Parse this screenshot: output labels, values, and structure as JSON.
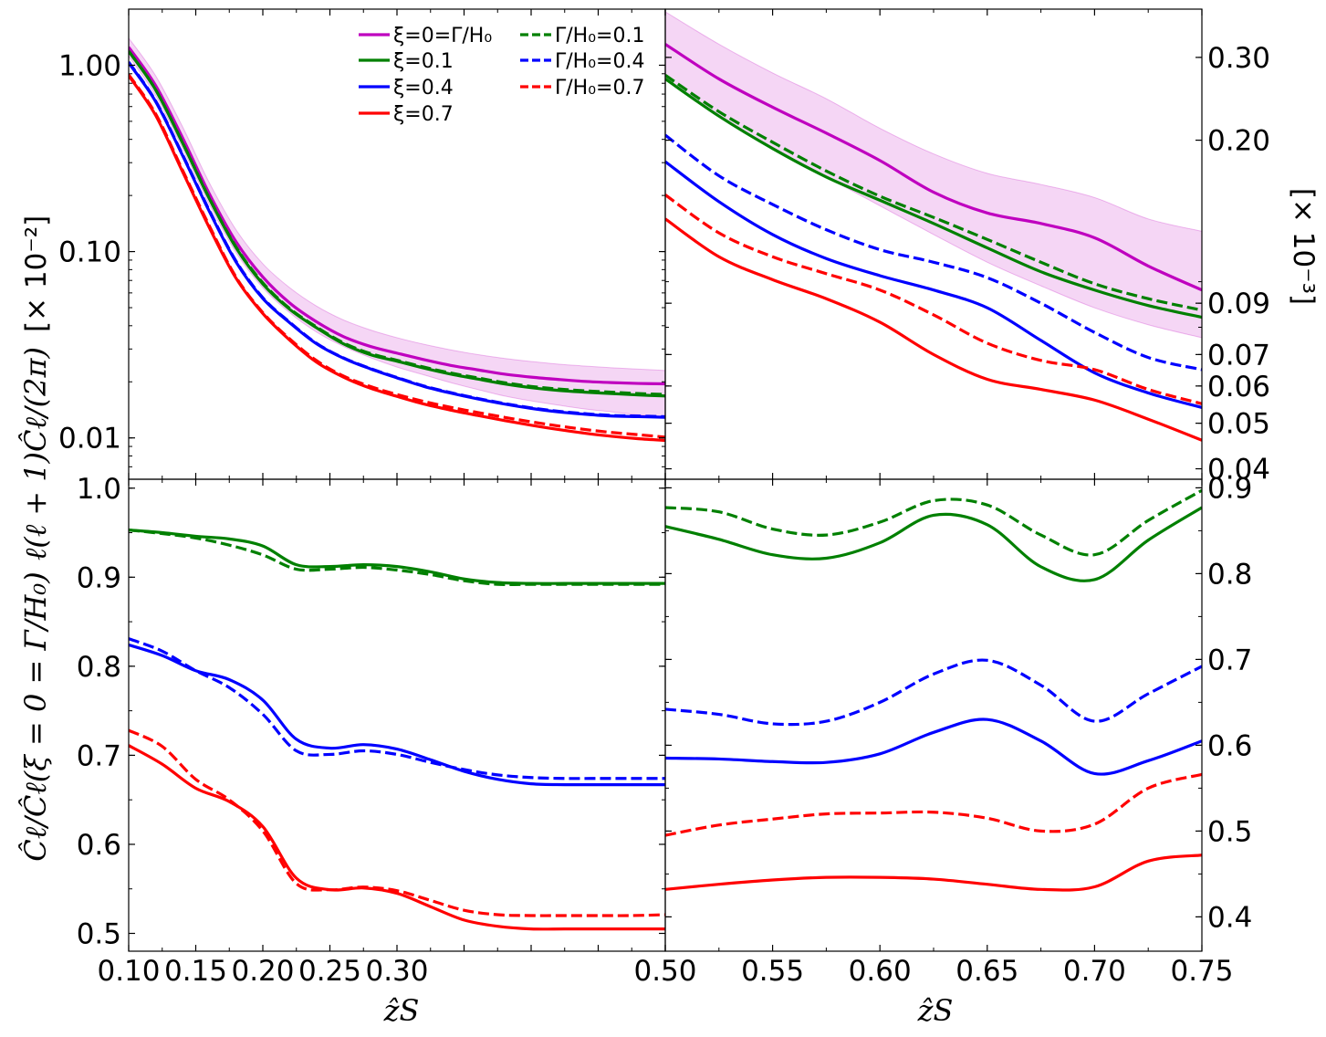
{
  "chart_data": [
    {
      "panel": "top-left",
      "type": "line",
      "yscale": "log",
      "xlim": [
        0.1,
        0.5
      ],
      "ylim": [
        0.006,
        2.0
      ],
      "yticks": [
        0.01,
        0.1,
        1.0
      ],
      "ytick_labels": [
        "0.01",
        "0.10",
        "1.00"
      ],
      "ylabel": "ℓ(ℓ + 1)Ĉℓ/(2π)",
      "yunit": "[× 10⁻²]",
      "legend": {
        "placement": "top",
        "entries": [
          {
            "label": "ξ=0=Γ/H₀",
            "color": "#bf00bf",
            "style": "solid"
          },
          {
            "label": "ξ=0.1",
            "color": "#008000",
            "style": "solid"
          },
          {
            "label": "ξ=0.4",
            "color": "#0000ff",
            "style": "solid"
          },
          {
            "label": "ξ=0.7",
            "color": "#ff0000",
            "style": "solid"
          },
          {
            "label": "Γ/H₀=0.1",
            "color": "#008000",
            "style": "dashed"
          },
          {
            "label": "Γ/H₀=0.4",
            "color": "#0000ff",
            "style": "dashed"
          },
          {
            "label": "Γ/H₀=0.7",
            "color": "#ff0000",
            "style": "dashed"
          }
        ]
      },
      "x": [
        0.1,
        0.12,
        0.14,
        0.16,
        0.18,
        0.2,
        0.22,
        0.24,
        0.26,
        0.28,
        0.3,
        0.32,
        0.34,
        0.36,
        0.38,
        0.4,
        0.42,
        0.44,
        0.46,
        0.48,
        0.5
      ],
      "band": {
        "name": "ξ=0=Γ/H₀ band",
        "color": "#bf00bf",
        "lower": [
          1.12,
          0.69,
          0.36,
          0.18,
          0.099,
          0.064,
          0.047,
          0.037,
          0.031,
          0.027,
          0.024,
          0.0218,
          0.0198,
          0.0182,
          0.0168,
          0.0158,
          0.015,
          0.0143,
          0.0138,
          0.0133,
          0.013
        ],
        "upper": [
          1.4,
          0.88,
          0.47,
          0.235,
          0.131,
          0.086,
          0.064,
          0.051,
          0.043,
          0.038,
          0.0345,
          0.0318,
          0.0297,
          0.028,
          0.0267,
          0.0257,
          0.0249,
          0.0243,
          0.0238,
          0.0234,
          0.023
        ]
      },
      "series": [
        {
          "name": "ξ=0=Γ/H₀",
          "color": "#bf00bf",
          "style": "solid",
          "values": [
            1.25,
            0.78,
            0.41,
            0.205,
            0.113,
            0.073,
            0.053,
            0.042,
            0.035,
            0.031,
            0.0285,
            0.0263,
            0.0245,
            0.0232,
            0.022,
            0.0212,
            0.0206,
            0.0201,
            0.0198,
            0.0196,
            0.0195
          ]
        },
        {
          "name": "ξ=0.1",
          "color": "#008000",
          "style": "solid",
          "values": [
            1.19,
            0.74,
            0.385,
            0.193,
            0.105,
            0.067,
            0.049,
            0.039,
            0.032,
            0.028,
            0.0258,
            0.0237,
            0.022,
            0.0207,
            0.0195,
            0.0186,
            0.018,
            0.0176,
            0.0173,
            0.017,
            0.0168
          ]
        },
        {
          "name": "ξ=0.4",
          "color": "#0000ff",
          "style": "solid",
          "values": [
            1.03,
            0.64,
            0.33,
            0.165,
            0.088,
            0.056,
            0.0415,
            0.032,
            0.0268,
            0.0235,
            0.021,
            0.0189,
            0.0174,
            0.0162,
            0.0152,
            0.0144,
            0.0138,
            0.0134,
            0.0131,
            0.013,
            0.0129
          ]
        },
        {
          "name": "ξ=0.7",
          "color": "#ff0000",
          "style": "solid",
          "values": [
            0.88,
            0.54,
            0.27,
            0.135,
            0.072,
            0.0465,
            0.0335,
            0.0255,
            0.0212,
            0.0185,
            0.0167,
            0.0152,
            0.0141,
            0.0132,
            0.0124,
            0.0117,
            0.0111,
            0.0106,
            0.0102,
            0.0099,
            0.0097
          ]
        },
        {
          "name": "Γ/H₀=0.1",
          "color": "#008000",
          "style": "dashed",
          "values": [
            1.19,
            0.74,
            0.386,
            0.194,
            0.106,
            0.068,
            0.0495,
            0.0394,
            0.0324,
            0.0284,
            0.0261,
            0.024,
            0.0223,
            0.021,
            0.0198,
            0.0189,
            0.0183,
            0.0179,
            0.0176,
            0.0173,
            0.0171
          ]
        },
        {
          "name": "Γ/H₀=0.4",
          "color": "#0000ff",
          "style": "dashed",
          "values": [
            1.04,
            0.645,
            0.333,
            0.167,
            0.089,
            0.0565,
            0.0418,
            0.0322,
            0.0269,
            0.0236,
            0.0211,
            0.019,
            0.0175,
            0.0163,
            0.0153,
            0.0145,
            0.0139,
            0.0135,
            0.0132,
            0.0131,
            0.013
          ]
        },
        {
          "name": "Γ/H₀=0.7",
          "color": "#ff0000",
          "style": "dashed",
          "values": [
            0.89,
            0.55,
            0.275,
            0.138,
            0.073,
            0.047,
            0.034,
            0.026,
            0.0215,
            0.0189,
            0.0171,
            0.0157,
            0.0146,
            0.0137,
            0.0129,
            0.0122,
            0.0116,
            0.0111,
            0.0107,
            0.0104,
            0.0101
          ]
        }
      ]
    },
    {
      "panel": "top-right",
      "type": "line",
      "yscale": "log",
      "xlim": [
        0.5,
        0.75
      ],
      "ylim": [
        0.038,
        0.38
      ],
      "yticks": [
        0.04,
        0.05,
        0.06,
        0.07,
        0.09,
        0.2,
        0.3
      ],
      "ytick_labels": [
        "0.04",
        "0.05",
        "0.06",
        "0.07",
        "0.09",
        "0.20",
        "0.30"
      ],
      "yunit": "[× 10⁻³]",
      "x": [
        0.5,
        0.525,
        0.55,
        0.575,
        0.6,
        0.625,
        0.65,
        0.675,
        0.7,
        0.725,
        0.75
      ],
      "band": {
        "name": "ξ=0=Γ/H₀ band",
        "color": "#bf00bf",
        "lower": [
          0.27,
          0.226,
          0.192,
          0.167,
          0.145,
          0.126,
          0.11,
          0.098,
          0.088,
          0.081,
          0.076
        ],
        "upper": [
          0.375,
          0.32,
          0.278,
          0.245,
          0.212,
          0.187,
          0.17,
          0.161,
          0.151,
          0.136,
          0.128
        ]
      },
      "series": [
        {
          "name": "ξ=0=Γ/H₀",
          "color": "#bf00bf",
          "style": "solid",
          "values": [
            0.32,
            0.27,
            0.235,
            0.207,
            0.181,
            0.155,
            0.14,
            0.133,
            0.124,
            0.108,
            0.096
          ]
        },
        {
          "name": "ξ=0.1",
          "color": "#008000",
          "style": "solid",
          "values": [
            0.27,
            0.225,
            0.192,
            0.167,
            0.149,
            0.133,
            0.118,
            0.105,
            0.096,
            0.089,
            0.084
          ]
        },
        {
          "name": "ξ=0.4",
          "color": "#0000ff",
          "style": "solid",
          "values": [
            0.18,
            0.148,
            0.126,
            0.112,
            0.103,
            0.096,
            0.088,
            0.075,
            0.064,
            0.058,
            0.054
          ]
        },
        {
          "name": "ξ=0.7",
          "color": "#ff0000",
          "style": "solid",
          "values": [
            0.136,
            0.113,
            0.101,
            0.092,
            0.082,
            0.07,
            0.062,
            0.059,
            0.056,
            0.051,
            0.046
          ]
        },
        {
          "name": "Γ/H₀=0.1",
          "color": "#008000",
          "style": "dashed",
          "values": [
            0.275,
            0.23,
            0.198,
            0.172,
            0.152,
            0.137,
            0.123,
            0.11,
            0.099,
            0.092,
            0.087
          ]
        },
        {
          "name": "Γ/H₀=0.4",
          "color": "#0000ff",
          "style": "dashed",
          "values": [
            0.205,
            0.168,
            0.146,
            0.129,
            0.117,
            0.11,
            0.102,
            0.09,
            0.078,
            0.069,
            0.065
          ]
        },
        {
          "name": "Γ/H₀=0.7",
          "color": "#ff0000",
          "style": "dashed",
          "values": [
            0.153,
            0.127,
            0.113,
            0.104,
            0.096,
            0.085,
            0.074,
            0.068,
            0.065,
            0.059,
            0.055
          ]
        }
      ]
    },
    {
      "panel": "bottom-left",
      "type": "line",
      "xlim": [
        0.1,
        0.5
      ],
      "ylim": [
        0.48,
        1.01
      ],
      "yticks": [
        0.5,
        0.6,
        0.7,
        0.8,
        0.9,
        1.0
      ],
      "ytick_labels": [
        "0.5",
        "0.6",
        "0.7",
        "0.8",
        "0.9",
        "1.0"
      ],
      "xticks": [
        0.1,
        0.15,
        0.2,
        0.25,
        0.3
      ],
      "xtick_labels": [
        "0.10",
        "0.15",
        "0.20",
        "0.25",
        "0.30"
      ],
      "xlabel": "ẑS",
      "ylabel": "Ĉℓ/Ĉℓ(ξ = 0 = Γ/H₀)",
      "x": [
        0.1,
        0.125,
        0.15,
        0.175,
        0.2,
        0.225,
        0.25,
        0.275,
        0.3,
        0.325,
        0.35,
        0.375,
        0.4,
        0.425,
        0.45,
        0.475,
        0.5
      ],
      "series": [
        {
          "name": "ξ=0.1",
          "color": "#008000",
          "style": "solid",
          "values": [
            0.953,
            0.95,
            0.946,
            0.943,
            0.935,
            0.914,
            0.912,
            0.914,
            0.912,
            0.906,
            0.898,
            0.894,
            0.893,
            0.893,
            0.893,
            0.893,
            0.893
          ]
        },
        {
          "name": "Γ/H₀=0.1",
          "color": "#008000",
          "style": "dashed",
          "values": [
            0.953,
            0.949,
            0.944,
            0.936,
            0.925,
            0.909,
            0.909,
            0.911,
            0.908,
            0.903,
            0.896,
            0.892,
            0.892,
            0.892,
            0.892,
            0.892,
            0.892
          ]
        },
        {
          "name": "ξ=0.4",
          "color": "#0000ff",
          "style": "solid",
          "values": [
            0.824,
            0.812,
            0.795,
            0.785,
            0.762,
            0.718,
            0.708,
            0.712,
            0.707,
            0.695,
            0.682,
            0.673,
            0.668,
            0.667,
            0.667,
            0.667,
            0.667
          ]
        },
        {
          "name": "Γ/H₀=0.4",
          "color": "#0000ff",
          "style": "dashed",
          "values": [
            0.831,
            0.817,
            0.795,
            0.776,
            0.746,
            0.705,
            0.701,
            0.705,
            0.701,
            0.692,
            0.684,
            0.678,
            0.675,
            0.674,
            0.674,
            0.674,
            0.674
          ]
        },
        {
          "name": "ξ=0.7",
          "color": "#ff0000",
          "style": "solid",
          "values": [
            0.711,
            0.69,
            0.663,
            0.648,
            0.62,
            0.562,
            0.549,
            0.551,
            0.545,
            0.53,
            0.515,
            0.508,
            0.505,
            0.505,
            0.505,
            0.505,
            0.505
          ]
        },
        {
          "name": "Γ/H₀=0.7",
          "color": "#ff0000",
          "style": "dashed",
          "values": [
            0.728,
            0.71,
            0.673,
            0.65,
            0.615,
            0.556,
            0.549,
            0.552,
            0.548,
            0.537,
            0.526,
            0.521,
            0.52,
            0.52,
            0.52,
            0.52,
            0.521
          ]
        }
      ]
    },
    {
      "panel": "bottom-right",
      "type": "line",
      "xlim": [
        0.5,
        0.75
      ],
      "ylim": [
        0.36,
        0.91
      ],
      "yticks": [
        0.4,
        0.5,
        0.6,
        0.7,
        0.8,
        0.9
      ],
      "ytick_labels": [
        "0.4",
        "0.5",
        "0.6",
        "0.7",
        "0.8",
        "0.9"
      ],
      "xticks": [
        0.5,
        0.55,
        0.6,
        0.65,
        0.7,
        0.75
      ],
      "xtick_labels": [
        "0.50",
        "0.55",
        "0.60",
        "0.65",
        "0.70",
        "0.75"
      ],
      "xlabel": "ẑS",
      "x": [
        0.5,
        0.525,
        0.55,
        0.575,
        0.6,
        0.625,
        0.65,
        0.675,
        0.7,
        0.725,
        0.75
      ],
      "series": [
        {
          "name": "ξ=0.1",
          "color": "#008000",
          "style": "solid",
          "values": [
            0.855,
            0.84,
            0.822,
            0.818,
            0.836,
            0.868,
            0.857,
            0.808,
            0.793,
            0.839,
            0.877
          ]
        },
        {
          "name": "Γ/H₀=0.1",
          "color": "#008000",
          "style": "dashed",
          "values": [
            0.877,
            0.872,
            0.852,
            0.845,
            0.86,
            0.885,
            0.88,
            0.845,
            0.822,
            0.862,
            0.897
          ]
        },
        {
          "name": "ξ=0.4",
          "color": "#0000ff",
          "style": "solid",
          "values": [
            0.585,
            0.584,
            0.581,
            0.58,
            0.59,
            0.615,
            0.63,
            0.605,
            0.567,
            0.582,
            0.605
          ]
        },
        {
          "name": "Γ/H₀=0.4",
          "color": "#0000ff",
          "style": "dashed",
          "values": [
            0.642,
            0.636,
            0.625,
            0.628,
            0.65,
            0.683,
            0.699,
            0.67,
            0.628,
            0.66,
            0.692
          ]
        },
        {
          "name": "ξ=0.7",
          "color": "#ff0000",
          "style": "solid",
          "values": [
            0.432,
            0.438,
            0.443,
            0.446,
            0.446,
            0.444,
            0.438,
            0.432,
            0.435,
            0.465,
            0.472
          ]
        },
        {
          "name": "Γ/H₀=0.7",
          "color": "#ff0000",
          "style": "dashed",
          "values": [
            0.495,
            0.507,
            0.514,
            0.52,
            0.521,
            0.522,
            0.515,
            0.5,
            0.508,
            0.55,
            0.566
          ]
        }
      ]
    }
  ]
}
